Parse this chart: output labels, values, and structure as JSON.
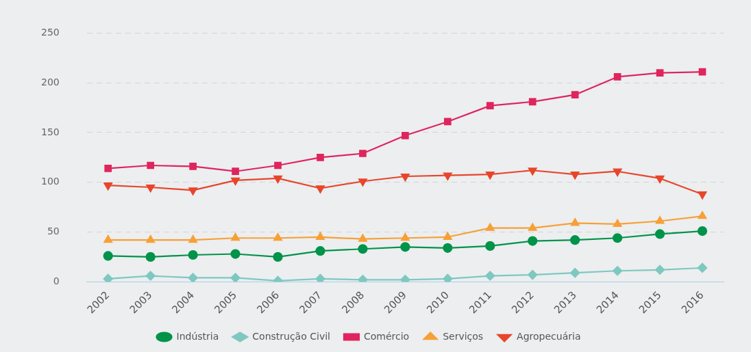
{
  "chart_data": {
    "type": "line",
    "categories": [
      "2002",
      "2003",
      "2004",
      "2005",
      "2006",
      "2007",
      "2008",
      "2009",
      "2010",
      "2011",
      "2012",
      "2013",
      "2014",
      "2015",
      "2016"
    ],
    "series": [
      {
        "name": "Indústria",
        "color": "#00934a",
        "marker": "circle",
        "values": [
          26,
          25,
          27,
          28,
          25,
          31,
          33,
          35,
          34,
          36,
          41,
          42,
          44,
          48,
          51
        ]
      },
      {
        "name": "Construção Civil",
        "color": "#7ec8c0",
        "marker": "diamond",
        "values": [
          3,
          6,
          4,
          4,
          1,
          3,
          2,
          2,
          3,
          6,
          7,
          9,
          11,
          12,
          14
        ]
      },
      {
        "name": "Comércio",
        "color": "#e0245e",
        "marker": "square",
        "values": [
          114,
          117,
          116,
          111,
          117,
          125,
          129,
          147,
          161,
          177,
          181,
          188,
          206,
          210,
          211
        ]
      },
      {
        "name": "Serviços",
        "color": "#f7a035",
        "marker": "triangle",
        "values": [
          42,
          42,
          42,
          44,
          44,
          45,
          43,
          44,
          45,
          54,
          54,
          59,
          58,
          61,
          66
        ]
      },
      {
        "name": "Agropecuária",
        "color": "#e8452a",
        "marker": "triangle-down",
        "values": [
          97,
          95,
          92,
          102,
          104,
          94,
          101,
          106,
          107,
          108,
          112,
          108,
          111,
          104,
          88
        ]
      }
    ],
    "ylim": [
      0,
      250
    ],
    "yticks": [
      0,
      50,
      100,
      150,
      200,
      250
    ],
    "grid": "y",
    "legend": "bottom",
    "line_style": "solid"
  }
}
